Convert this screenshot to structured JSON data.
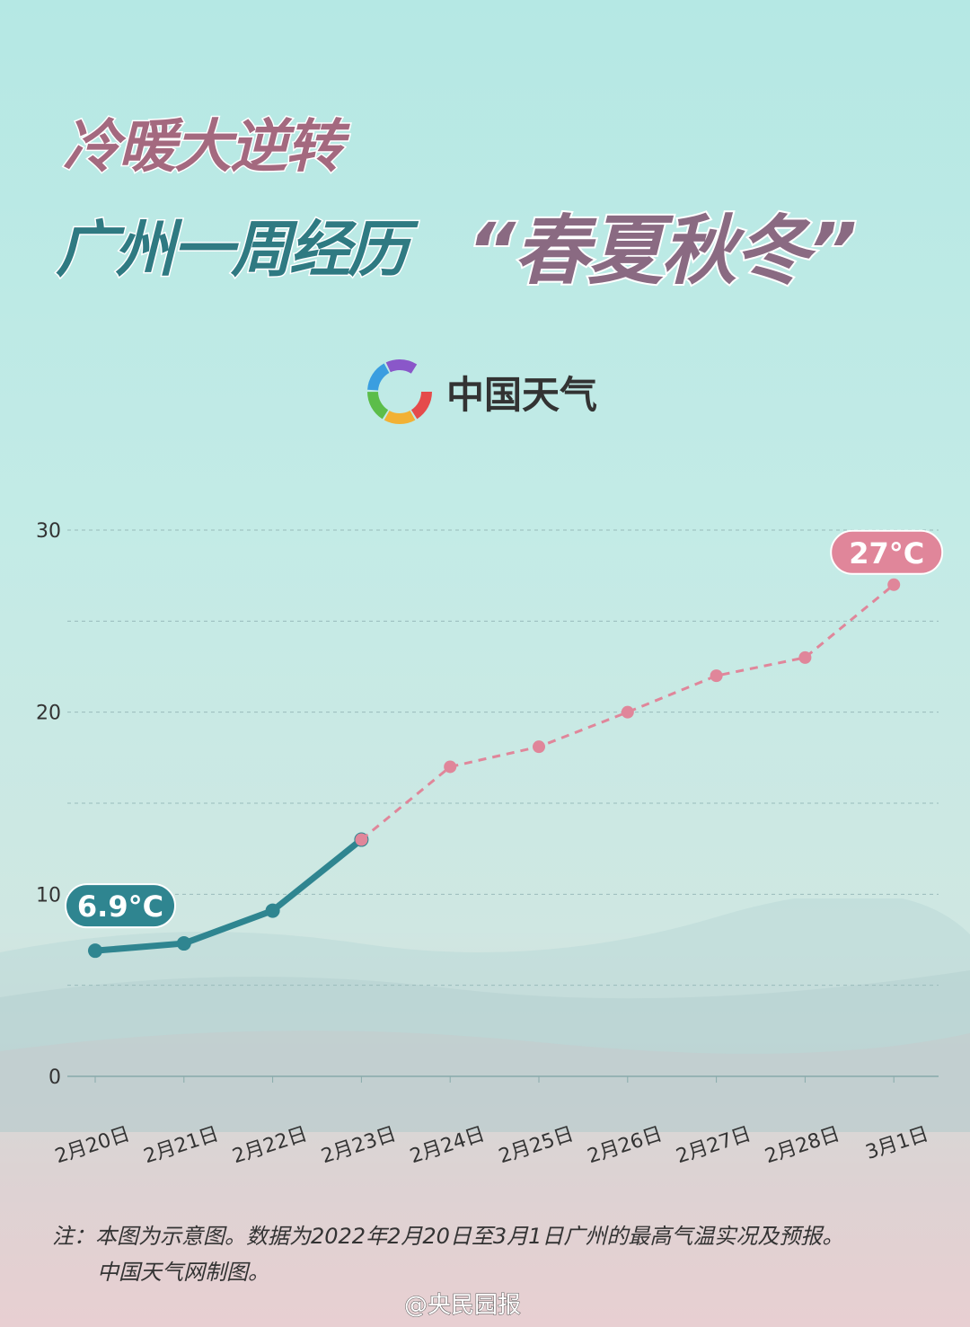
{
  "title": {
    "line1": "冷暖大逆转",
    "line2": "广州一周经历",
    "line2_quote": "“春夏秋冬”"
  },
  "logo_text": "中国天气",
  "chart_data": {
    "type": "line",
    "categories": [
      "2月20日",
      "2月21日",
      "2月22日",
      "2月23日",
      "2月24日",
      "2月25日",
      "2月26日",
      "2月27日",
      "2月28日",
      "3月1日"
    ],
    "series": [
      {
        "style": "solid",
        "color": "#2f8590",
        "values": [
          6.9,
          7.3,
          9.1,
          13.0,
          null,
          null,
          null,
          null,
          null,
          null
        ]
      },
      {
        "style": "dashed",
        "color": "#e0869a",
        "values": [
          null,
          null,
          null,
          13.0,
          17.0,
          18.1,
          20.0,
          22.0,
          23.0,
          27.0
        ]
      }
    ],
    "yticks": [
      0,
      10,
      20,
      30
    ],
    "ylim": [
      0,
      30
    ],
    "grid": true,
    "annotations": [
      {
        "text": "6.9°C",
        "index": 0,
        "color": "#2f8590"
      },
      {
        "text": "27°C",
        "index": 9,
        "color": "#e0869a"
      }
    ]
  },
  "note": {
    "line1": "注：本图为示意图。数据为2022年2月20日至3月1日广州的最高气温实况及预报。",
    "line2": "中国天气网制图。"
  },
  "footer": "@央民园报"
}
